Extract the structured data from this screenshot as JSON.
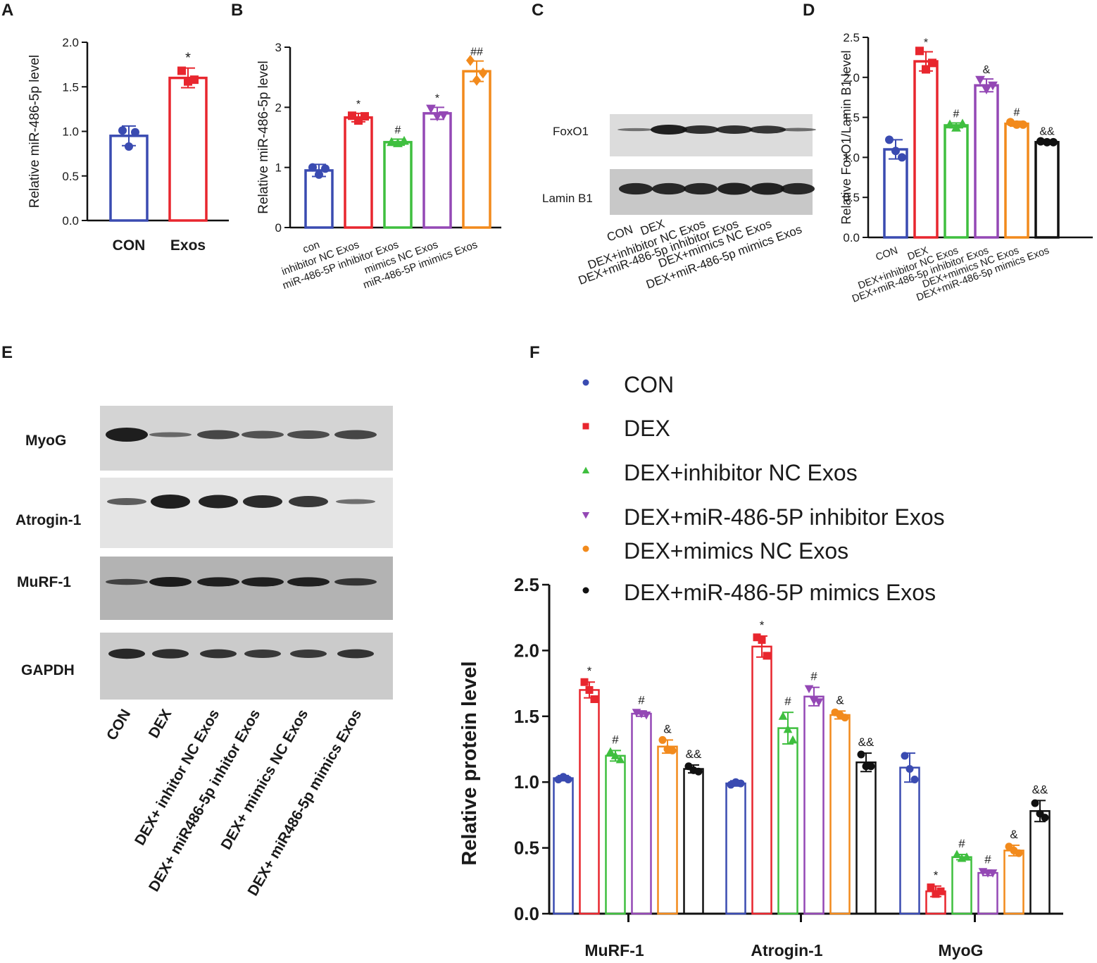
{
  "panels": {
    "a": "A",
    "b": "B",
    "c": "C",
    "d": "D",
    "e": "E",
    "f": "F"
  },
  "colors": {
    "con": "#3a4bb1",
    "dex": "#e8262e",
    "inhibitor_nc": "#3fbf3f",
    "inhibitor": "#9448b5",
    "mimics_nc": "#f28a1c",
    "mimics": "#111111"
  },
  "blot_c": {
    "bands": [
      "FoxO1",
      "Lamin B1"
    ],
    "lanes": [
      "CON",
      "DEX",
      "DEX+inhibitor NC Exos",
      "DEX+miR-486-5p inhibitor  Exos",
      "DEX+mimics NC Exos",
      "DEX+miR-486-5p mimics Exos"
    ]
  },
  "blot_e": {
    "bands": [
      "MyoG",
      "Atrogin-1",
      "MuRF-1",
      "GAPDH"
    ],
    "lanes": [
      "CON",
      "DEX",
      "DEX+ inhitor NC Exos",
      "DEX+ miR486-5p inhitor Exos",
      "DEX+ mimics NC Exos",
      "DEX+ miR486-5p mimics Exos"
    ]
  },
  "chart_data": [
    {
      "panel": "A",
      "type": "bar",
      "categories": [
        "CON",
        "Exos"
      ],
      "values": [
        0.95,
        1.6
      ],
      "errors": [
        0.11,
        0.11
      ],
      "points": [
        [
          1.01,
          0.83,
          0.99
        ],
        [
          1.68,
          1.56,
          1.58
        ]
      ],
      "annotations": [
        "",
        "*"
      ],
      "ylabel": "Relative miR-486-5p level",
      "ylim": [
        0,
        2.0
      ],
      "yticks": [
        "0.0",
        "0.5",
        "1.0",
        "1.5",
        "2.0"
      ],
      "colors": [
        "#3a4bb1",
        "#e8262e"
      ],
      "markers": [
        "circle",
        "square"
      ]
    },
    {
      "panel": "B",
      "type": "bar",
      "categories": [
        "con",
        "inhibitor NC Exos",
        "miR-486-5P inhibitor Exos",
        "mimics NC Exos",
        "miR-486-5P imimics Exos"
      ],
      "values": [
        0.95,
        1.83,
        1.42,
        1.9,
        2.6
      ],
      "errors": [
        0.1,
        0.07,
        0.05,
        0.1,
        0.17
      ],
      "points": [
        [
          1.0,
          0.88,
          0.98
        ],
        [
          1.86,
          1.78,
          1.85
        ],
        [
          1.42,
          1.4,
          1.44
        ],
        [
          1.98,
          1.85,
          1.87
        ],
        [
          2.78,
          2.45,
          2.57
        ]
      ],
      "annotations": [
        "",
        "*",
        "#",
        "*",
        "##"
      ],
      "ylabel": "Relative miR-486-5p level",
      "ylim": [
        0,
        3
      ],
      "yticks": [
        "0",
        "1",
        "2",
        "3"
      ],
      "colors": [
        "#3a4bb1",
        "#e8262e",
        "#3fbf3f",
        "#9448b5",
        "#f28a1c"
      ],
      "markers": [
        "circle",
        "square",
        "triangle",
        "triangle-down",
        "diamond"
      ]
    },
    {
      "panel": "D",
      "type": "bar",
      "categories": [
        "CON",
        "DEX",
        "DEX+inhibitor NC Exos",
        "DEX+miR-486-5p inhibitor  Exos",
        "DEX+mimics NC Exos",
        "DEX+miR-486-5p mimics Exos"
      ],
      "values": [
        1.1,
        2.2,
        1.4,
        1.9,
        1.42,
        1.19
      ],
      "errors": [
        0.12,
        0.12,
        0.03,
        0.08,
        0.03,
        0.02
      ],
      "points": [
        [
          1.22,
          1.08,
          1.0
        ],
        [
          2.33,
          2.1,
          2.18
        ],
        [
          1.41,
          1.37,
          1.42
        ],
        [
          1.97,
          1.85,
          1.9
        ],
        [
          1.44,
          1.41,
          1.41
        ],
        [
          1.2,
          1.19,
          1.19
        ]
      ],
      "annotations": [
        "",
        "*",
        "#",
        "&",
        "#",
        "&&"
      ],
      "ylabel": "Relative FoxO1/Lamin B1 level",
      "ylim": [
        0,
        2.5
      ],
      "yticks": [
        "0.0",
        "0.5",
        "1.0",
        "1.5",
        "2.0",
        "2.5"
      ],
      "colors": [
        "#3a4bb1",
        "#e8262e",
        "#3fbf3f",
        "#9448b5",
        "#f28a1c",
        "#111111"
      ],
      "markers": [
        "circle",
        "square",
        "triangle",
        "triangle-down",
        "circle",
        "circle"
      ]
    },
    {
      "panel": "F",
      "type": "bar",
      "categories": [
        "MuRF-1",
        "Atrogin-1",
        "MyoG"
      ],
      "series": [
        {
          "name": "CON",
          "values": [
            1.03,
            0.99,
            1.11
          ],
          "errors": [
            0.02,
            0.02,
            0.11
          ],
          "points": [
            [
              1.02,
              1.04,
              1.02
            ],
            [
              0.98,
              1.0,
              0.99
            ],
            [
              1.2,
              1.1,
              1.02
            ]
          ],
          "annotations": [
            "",
            "",
            ""
          ]
        },
        {
          "name": "DEX",
          "values": [
            1.7,
            2.03,
            0.17
          ],
          "errors": [
            0.06,
            0.08,
            0.04
          ],
          "points": [
            [
              1.76,
              1.7,
              1.63
            ],
            [
              2.1,
              2.08,
              1.96
            ],
            [
              0.2,
              0.15,
              0.17
            ]
          ],
          "annotations": [
            "*",
            "*",
            "*"
          ]
        },
        {
          "name": "DEX+inhibitor NC Exos",
          "values": [
            1.2,
            1.41,
            0.43
          ],
          "errors": [
            0.04,
            0.12,
            0.02
          ],
          "points": [
            [
              1.23,
              1.2,
              1.17
            ],
            [
              1.5,
              1.4,
              1.32
            ],
            [
              0.45,
              0.42,
              0.43
            ]
          ],
          "annotations": [
            "#",
            "#",
            "#"
          ]
        },
        {
          "name": "DEX+miR-486-5P inhibitor Exos",
          "values": [
            1.52,
            1.65,
            0.31
          ],
          "errors": [
            0.02,
            0.07,
            0.02
          ],
          "points": [
            [
              1.53,
              1.52,
              1.51
            ],
            [
              1.71,
              1.62,
              1.61
            ],
            [
              0.32,
              0.31,
              0.31
            ]
          ],
          "annotations": [
            "#",
            "#",
            "#"
          ]
        },
        {
          "name": "DEX+mimics NC Exos",
          "values": [
            1.27,
            1.51,
            0.48
          ],
          "errors": [
            0.05,
            0.03,
            0.04
          ],
          "points": [
            [
              1.32,
              1.25,
              1.24
            ],
            [
              1.53,
              1.51,
              1.49
            ],
            [
              0.51,
              0.48,
              0.46
            ]
          ],
          "annotations": [
            "&",
            "&",
            "&"
          ]
        },
        {
          "name": "DEX+miR-486-5P mimics Exos",
          "values": [
            1.1,
            1.15,
            0.78
          ],
          "errors": [
            0.03,
            0.07,
            0.08
          ],
          "points": [
            [
              1.12,
              1.09,
              1.08
            ],
            [
              1.21,
              1.12,
              1.12
            ],
            [
              0.84,
              0.76,
              0.73
            ]
          ],
          "annotations": [
            "&&",
            "&&",
            "&&"
          ]
        }
      ],
      "ylabel": "Relative protein level",
      "ylim": [
        0,
        2.5
      ],
      "yticks": [
        "0.0",
        "0.5",
        "1.0",
        "1.5",
        "2.0",
        "2.5"
      ],
      "legend": "top",
      "colors": [
        "#3a4bb1",
        "#e8262e",
        "#3fbf3f",
        "#9448b5",
        "#f28a1c",
        "#111111"
      ],
      "markers": [
        "circle",
        "square",
        "triangle",
        "triangle-down",
        "circle",
        "circle"
      ]
    }
  ]
}
